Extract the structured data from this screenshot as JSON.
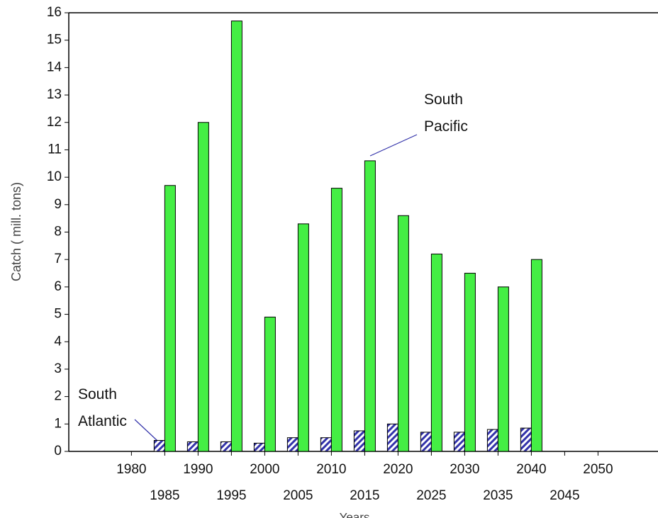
{
  "chart_data": {
    "type": "bar",
    "y_label": "Catch ( mill. tons)",
    "x_label": "Years",
    "x": [
      1985,
      1990,
      1995,
      2000,
      2005,
      2010,
      2015,
      2020,
      2025,
      2030,
      2035,
      2040
    ],
    "series": [
      {
        "name": "South Atlantic",
        "color": "#3333aa",
        "values": [
          0.4,
          0.35,
          0.35,
          0.3,
          0.5,
          0.5,
          0.75,
          1.0,
          0.7,
          0.7,
          0.8,
          0.85
        ]
      },
      {
        "name": "South Pacific",
        "color": "#44ee44",
        "values": [
          9.7,
          12.0,
          15.7,
          4.9,
          8.3,
          9.6,
          10.6,
          8.6,
          7.2,
          6.5,
          6.0,
          7.0
        ]
      }
    ],
    "xlim": [
      1970.6,
      2059
    ],
    "xticks": [
      1980,
      1985,
      1990,
      1995,
      2000,
      2005,
      2010,
      2015,
      2020,
      2025,
      2030,
      2035,
      2040,
      2045,
      2050
    ],
    "ylim": [
      0,
      16
    ],
    "yticks": [
      0,
      1,
      2,
      3,
      4,
      5,
      6,
      7,
      8,
      9,
      10,
      11,
      12,
      13,
      14,
      15,
      16
    ]
  }
}
